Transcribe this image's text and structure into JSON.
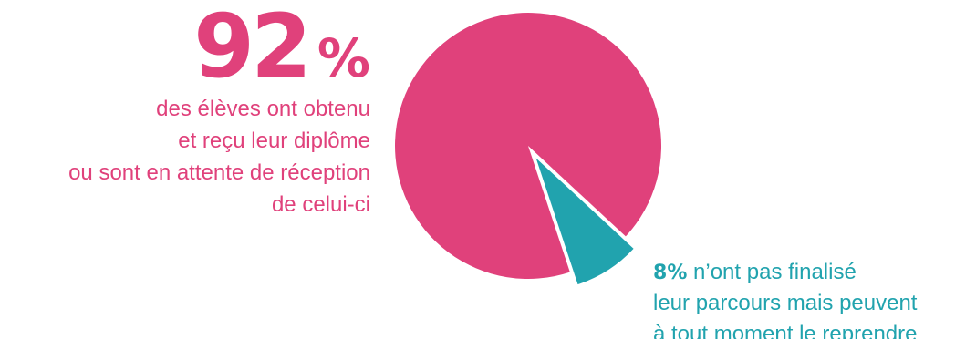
{
  "colors": {
    "pink": "#E0417B",
    "teal": "#21A3AE",
    "background": "#FFFFFF"
  },
  "chart_data": {
    "type": "pie",
    "slices": [
      {
        "value": 92,
        "color": "#E0417B",
        "number": "92",
        "unit": "%",
        "lines": [
          "des élèves ont obtenu",
          "et reçu leur diplôme",
          "ou sont en attente de réception",
          "de celui-ci"
        ]
      },
      {
        "value": 8,
        "color": "#21A3AE",
        "number": "8",
        "unit": "%",
        "lines": [
          "n’ont pas finalisé",
          "leur parcours mais peuvent",
          "à tout moment le reprendre"
        ]
      }
    ]
  }
}
